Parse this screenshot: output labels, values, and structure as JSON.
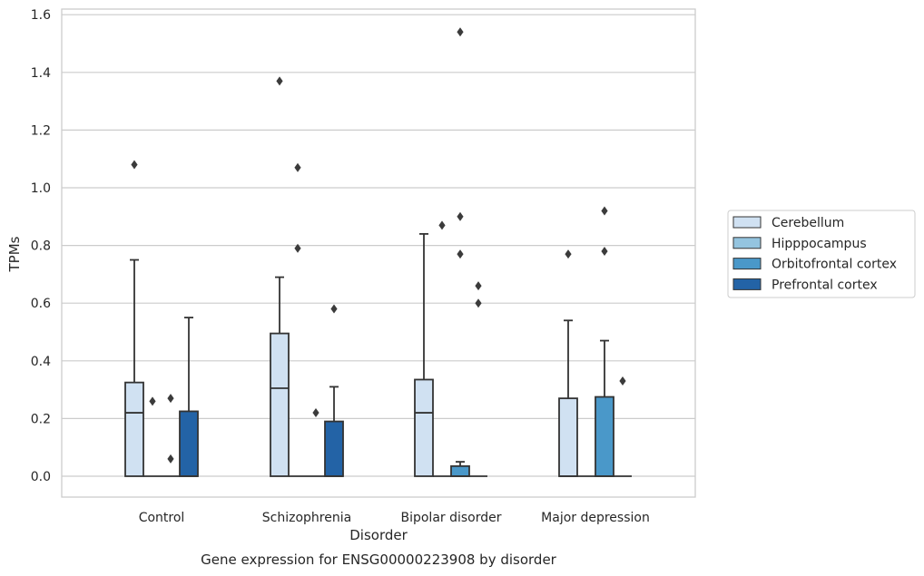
{
  "caption": "Gene expression for ENSG00000223908 by disorder",
  "chart_data": {
    "type": "box",
    "xlabel": "Disorder",
    "ylabel": "TPMs",
    "ylim": [
      -0.075,
      1.62
    ],
    "yticks": [
      "0.0",
      "0.2",
      "0.4",
      "0.6",
      "0.8",
      "1.0",
      "1.2",
      "1.4",
      "1.6"
    ],
    "grid": true,
    "legend_position": "right",
    "categories": [
      "Control",
      "Schizophrenia",
      "Bipolar disorder",
      "Major depression"
    ],
    "series": [
      {
        "name": "Cerebellum",
        "color": "#d0e1f2",
        "boxes": [
          {
            "category": "Control",
            "q1": 0.0,
            "median": 0.22,
            "q3": 0.325,
            "whisker_low": 0.0,
            "whisker_high": 0.75,
            "outliers": [
              1.08
            ]
          },
          {
            "category": "Schizophrenia",
            "q1": 0.0,
            "median": 0.305,
            "q3": 0.495,
            "whisker_low": 0.0,
            "whisker_high": 0.69,
            "outliers": [
              1.37
            ]
          },
          {
            "category": "Bipolar disorder",
            "q1": 0.0,
            "median": 0.22,
            "q3": 0.335,
            "whisker_low": 0.0,
            "whisker_high": 0.84,
            "outliers": []
          },
          {
            "category": "Major depression",
            "q1": 0.0,
            "median": 0.0,
            "q3": 0.27,
            "whisker_low": 0.0,
            "whisker_high": 0.54,
            "outliers": [
              0.77
            ]
          }
        ]
      },
      {
        "name": "Hipppocampus",
        "color": "#94c4df",
        "boxes": [
          {
            "category": "Control",
            "q1": 0.0,
            "median": 0.0,
            "q3": 0.0,
            "whisker_low": 0.0,
            "whisker_high": 0.0,
            "outliers": [
              0.26
            ]
          },
          {
            "category": "Schizophrenia",
            "q1": 0.0,
            "median": 0.0,
            "q3": 0.0,
            "whisker_low": 0.0,
            "whisker_high": 0.0,
            "outliers": [
              1.07,
              0.79
            ]
          },
          {
            "category": "Bipolar disorder",
            "q1": 0.0,
            "median": 0.0,
            "q3": 0.0,
            "whisker_low": 0.0,
            "whisker_high": 0.0,
            "outliers": [
              0.87
            ]
          },
          {
            "category": "Major depression",
            "q1": 0.0,
            "median": 0.0,
            "q3": 0.0,
            "whisker_low": 0.0,
            "whisker_high": 0.0,
            "outliers": []
          }
        ]
      },
      {
        "name": "Orbitofrontal cortex",
        "color": "#4a98c9",
        "boxes": [
          {
            "category": "Control",
            "q1": 0.0,
            "median": 0.0,
            "q3": 0.0,
            "whisker_low": 0.0,
            "whisker_high": 0.0,
            "outliers": [
              0.27,
              0.06
            ]
          },
          {
            "category": "Schizophrenia",
            "q1": 0.0,
            "median": 0.0,
            "q3": 0.0,
            "whisker_low": 0.0,
            "whisker_high": 0.0,
            "outliers": [
              0.22
            ]
          },
          {
            "category": "Bipolar disorder",
            "q1": 0.0,
            "median": 0.0,
            "q3": 0.035,
            "whisker_low": 0.0,
            "whisker_high": 0.05,
            "outliers": [
              1.54,
              0.9,
              0.77
            ]
          },
          {
            "category": "Major depression",
            "q1": 0.0,
            "median": 0.0,
            "q3": 0.275,
            "whisker_low": 0.0,
            "whisker_high": 0.47,
            "outliers": [
              0.92,
              0.78
            ]
          }
        ]
      },
      {
        "name": "Prefrontal cortex",
        "color": "#2363a6",
        "boxes": [
          {
            "category": "Control",
            "q1": 0.0,
            "median": 0.0,
            "q3": 0.225,
            "whisker_low": 0.0,
            "whisker_high": 0.55,
            "outliers": []
          },
          {
            "category": "Schizophrenia",
            "q1": 0.0,
            "median": 0.0,
            "q3": 0.19,
            "whisker_low": 0.0,
            "whisker_high": 0.31,
            "outliers": [
              0.58
            ]
          },
          {
            "category": "Bipolar disorder",
            "q1": 0.0,
            "median": 0.0,
            "q3": 0.0,
            "whisker_low": 0.0,
            "whisker_high": 0.0,
            "outliers": [
              0.66,
              0.6
            ]
          },
          {
            "category": "Major depression",
            "q1": 0.0,
            "median": 0.0,
            "q3": 0.0,
            "whisker_low": 0.0,
            "whisker_high": 0.0,
            "outliers": [
              0.33
            ]
          }
        ]
      }
    ]
  }
}
